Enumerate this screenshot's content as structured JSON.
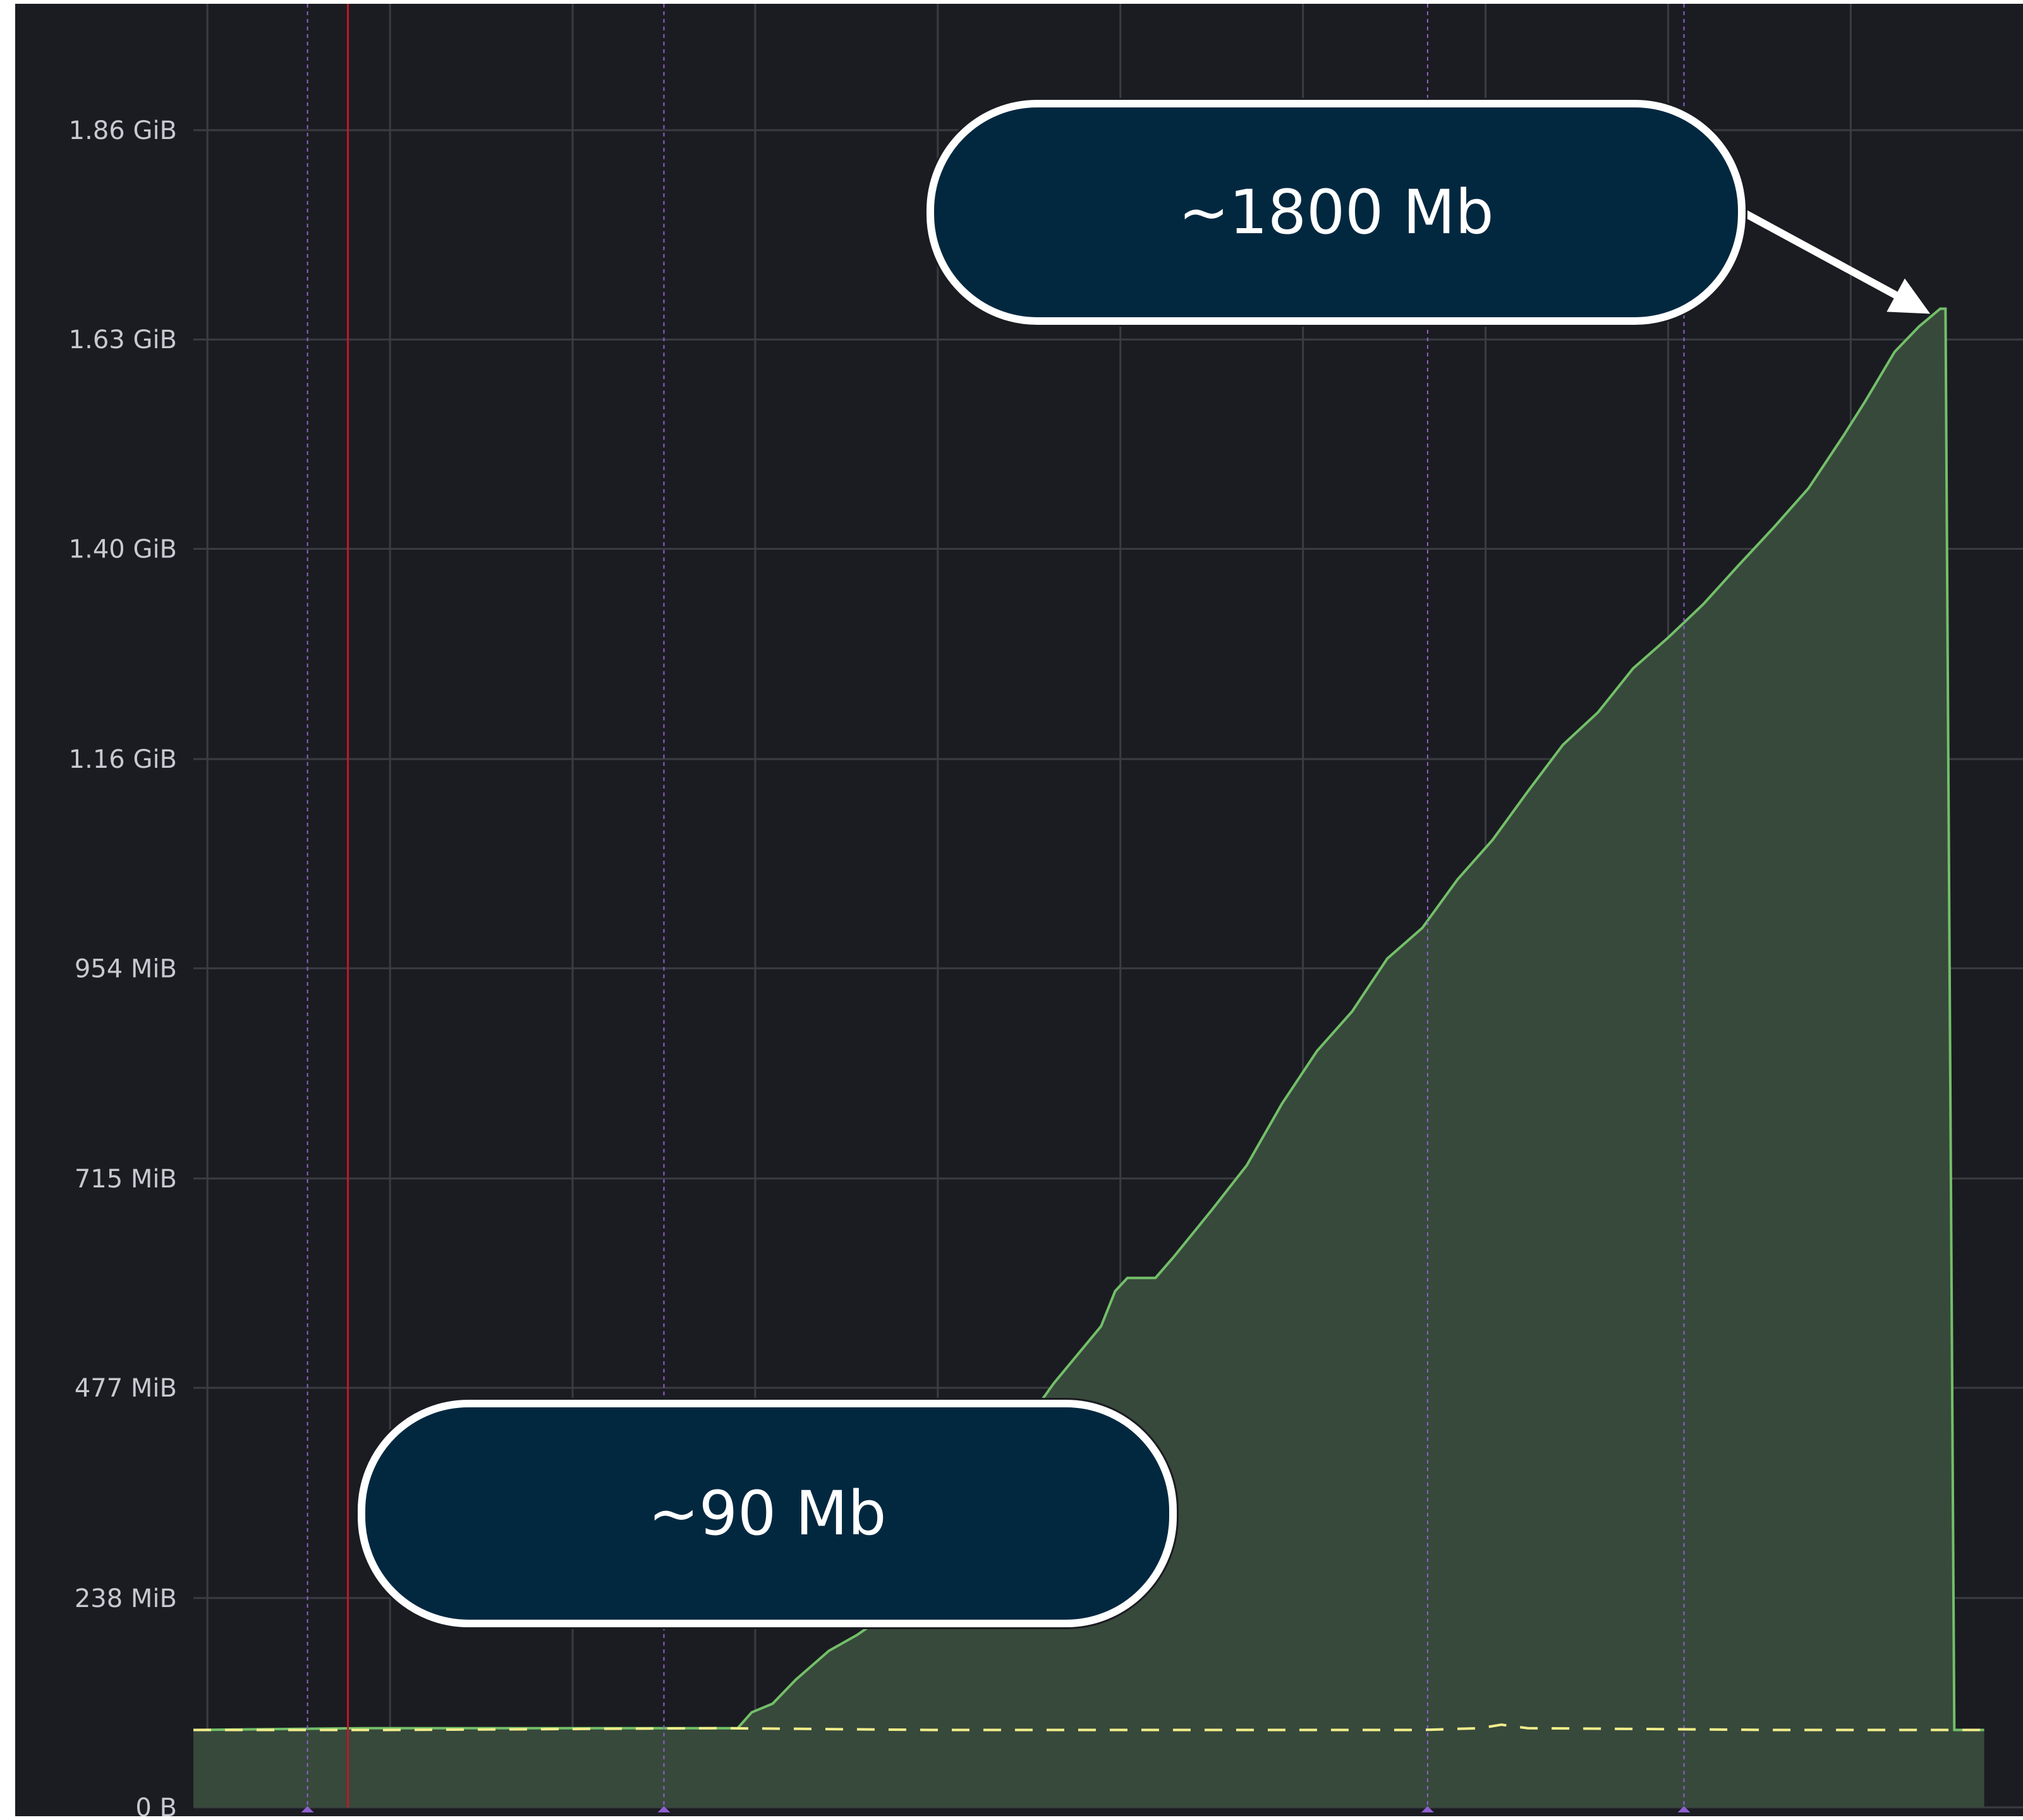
{
  "chart_data": {
    "type": "area",
    "ylabel": "",
    "xlabel": "",
    "y_unit": "MiB",
    "y_ticks": [
      {
        "label": "0 B",
        "value": 0
      },
      {
        "label": "238 MiB",
        "value": 238
      },
      {
        "label": "477 MiB",
        "value": 477
      },
      {
        "label": "715 MiB",
        "value": 715
      },
      {
        "label": "954 MiB",
        "value": 954
      },
      {
        "label": "1.16 GiB",
        "value": 1192
      },
      {
        "label": "1.40 GiB",
        "value": 1431
      },
      {
        "label": "1.63 GiB",
        "value": 1669
      },
      {
        "label": "1.86 GiB",
        "value": 1907
      }
    ],
    "ylim": [
      0,
      2060
    ],
    "xlim": [
      0,
      1000
    ],
    "grid": true,
    "series": [
      {
        "style": "solid-area",
        "color": "#73bf69",
        "points": [
          [
            0,
            88
          ],
          [
            97,
            90
          ],
          [
            307,
            90
          ],
          [
            310,
            90
          ],
          [
            318,
            108
          ],
          [
            330,
            118
          ],
          [
            343,
            145
          ],
          [
            362,
            178
          ],
          [
            378,
            196
          ],
          [
            397,
            222
          ],
          [
            418,
            262
          ],
          [
            428,
            283
          ],
          [
            442,
            326
          ],
          [
            455,
            392
          ],
          [
            475,
            440
          ],
          [
            490,
            482
          ],
          [
            517,
            547
          ],
          [
            525,
            587
          ],
          [
            532,
            602
          ],
          [
            548,
            602
          ],
          [
            558,
            625
          ],
          [
            580,
            679
          ],
          [
            600,
            730
          ],
          [
            620,
            800
          ],
          [
            640,
            860
          ],
          [
            660,
            905
          ],
          [
            680,
            965
          ],
          [
            700,
            1000
          ],
          [
            720,
            1055
          ],
          [
            740,
            1100
          ],
          [
            760,
            1155
          ],
          [
            780,
            1208
          ],
          [
            800,
            1245
          ],
          [
            820,
            1295
          ],
          [
            840,
            1330
          ],
          [
            860,
            1368
          ],
          [
            880,
            1412
          ],
          [
            900,
            1455
          ],
          [
            920,
            1500
          ],
          [
            940,
            1560
          ],
          [
            952,
            1598
          ],
          [
            969,
            1655
          ],
          [
            983,
            1684
          ],
          [
            995,
            1704
          ],
          [
            998,
            1704
          ],
          [
            1003,
            88
          ],
          [
            1020,
            88
          ]
        ]
      },
      {
        "style": "dashed-line",
        "color": "#f2ee8a",
        "points": [
          [
            0,
            88
          ],
          [
            110,
            88
          ],
          [
            300,
            90
          ],
          [
            420,
            88
          ],
          [
            700,
            88
          ],
          [
            733,
            90
          ],
          [
            745,
            94
          ],
          [
            760,
            90
          ],
          [
            900,
            88
          ],
          [
            1020,
            88
          ]
        ]
      }
    ],
    "vertical_markers": [
      {
        "x": 65,
        "style": "dotted",
        "color": "#8f5fd1"
      },
      {
        "x": 88,
        "style": "solid",
        "color": "#c4162a"
      },
      {
        "x": 268,
        "style": "dotted",
        "color": "#8f5fd1"
      },
      {
        "x": 703,
        "style": "dotted",
        "color": "#8f5fd1"
      },
      {
        "x": 849,
        "style": "dotted",
        "color": "#8f5fd1"
      }
    ],
    "annotations": [
      {
        "text": "~1800 Mb",
        "points_to": [
          995,
          1704
        ]
      },
      {
        "text": "~90 Mb",
        "points_to": [
          88,
          90
        ]
      }
    ]
  },
  "callouts": {
    "peak": "~1800 Mb",
    "baseline": "~90 Mb"
  },
  "colors": {
    "background": "#1b1c21",
    "grid": "#3a3c42",
    "area_fill": "#37493b",
    "series_line": "#73bf69",
    "dashed_line": "#f2ee8a",
    "callout_bg": "#022840",
    "callout_border": "#ffffff"
  }
}
